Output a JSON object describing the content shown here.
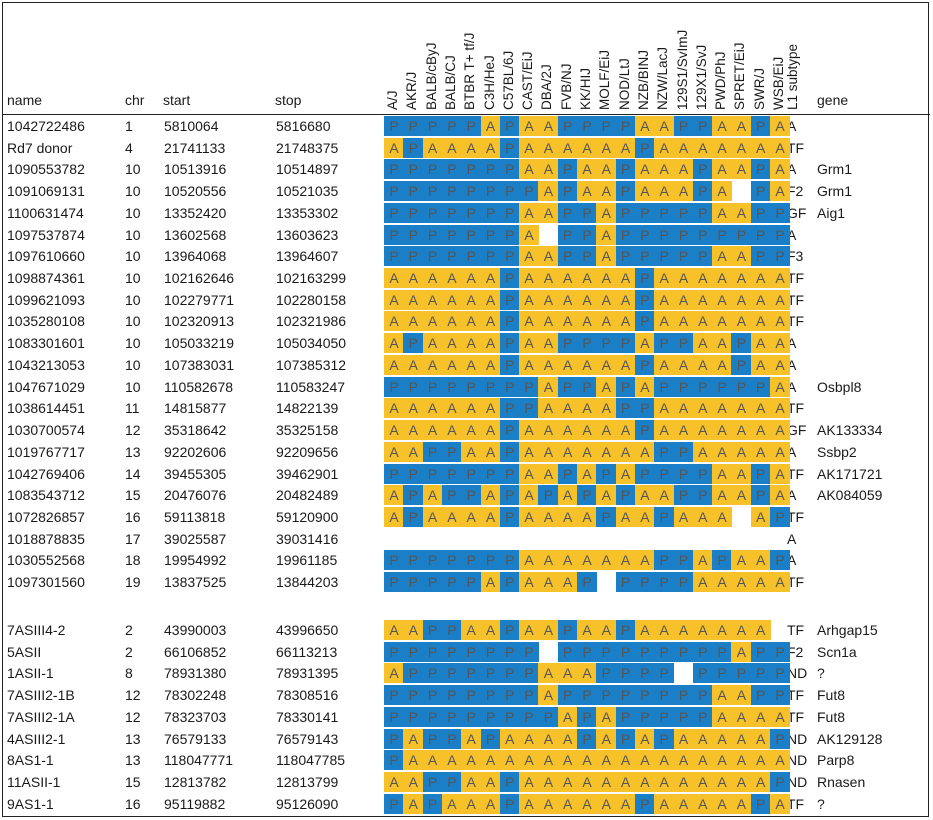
{
  "headers": {
    "name": "name",
    "chr": "chr",
    "start": "start",
    "stop": "stop",
    "l1_subtype": "L1 subtype",
    "gene": "gene"
  },
  "strains": [
    "A/J",
    "AKR/J",
    "BALB/cByJ",
    "BALB/CJ",
    "BTBR T+ tf/J",
    "C3H/HeJ",
    "C57BL/6J",
    "CAST/EiJ",
    "DBA/2J",
    "FVB/NJ",
    "KK/HIJ",
    "MOLF/EiJ",
    "NOD/LtJ",
    "NZB/BINJ",
    "NZW/LacJ",
    "129S1/SvImJ",
    "129X1/SvJ",
    "PWD/PhJ",
    "SPRET/EiJ",
    "SWR/J",
    "WSB/EiJ"
  ],
  "colors": {
    "A": "#f7c12a",
    "P": "#1a7fc7"
  },
  "group1": [
    {
      "name": "1042722486",
      "chr": "1",
      "start": "5810064",
      "stop": "5816680",
      "calls": "PPPPPAPAAPPPPAAPPAAPA",
      "subtype": "A",
      "gene": ""
    },
    {
      "name": "Rd7 donor",
      "chr": "4",
      "start": "21741133",
      "stop": "21748375",
      "calls": "APAAAAPAAAAAAPAAAAAAA",
      "subtype": "TF",
      "gene": ""
    },
    {
      "name": "1090553782",
      "chr": "10",
      "start": "10513916",
      "stop": "10514897",
      "calls": "PPPPPPPAAPAAPAAAPAAPA",
      "subtype": "A",
      "gene": "Grm1"
    },
    {
      "name": "1091069131",
      "chr": "10",
      "start": "10520556",
      "stop": "10521035",
      "calls": "PPPPPPPPAPAAPAAAPA-PA",
      "subtype": "F2",
      "gene": "Grm1"
    },
    {
      "name": "1100631474",
      "chr": "10",
      "start": "13352420",
      "stop": "13353302",
      "calls": "PPPPPPPAAPPAPPPPPAAPP",
      "subtype": "GF",
      "gene": "Aig1"
    },
    {
      "name": "1097537874",
      "chr": "10",
      "start": "13602568",
      "stop": "13603623",
      "calls": "PPPPPPPA-PPAPPPPPPPPP",
      "subtype": "A",
      "gene": ""
    },
    {
      "name": "1097610660",
      "chr": "10",
      "start": "13964068",
      "stop": "13964607",
      "calls": "PPPPPPPAAPPAPPPPPAAPP",
      "subtype": "F3",
      "gene": ""
    },
    {
      "name": "1098874361",
      "chr": "10",
      "start": "102162646",
      "stop": "102163299",
      "calls": "AAAAAAPAAAAAAPAAAAAAA",
      "subtype": "TF",
      "gene": ""
    },
    {
      "name": "1099621093",
      "chr": "10",
      "start": "102279771",
      "stop": "102280158",
      "calls": "AAAAAAPAAAAAAPAAAAAAA",
      "subtype": "TF",
      "gene": ""
    },
    {
      "name": "1035280108",
      "chr": "10",
      "start": "102320913",
      "stop": "102321986",
      "calls": "AAAAAAPAAAAAAPAAAAAAA",
      "subtype": "TF",
      "gene": ""
    },
    {
      "name": "1083301601",
      "chr": "10",
      "start": "105033219",
      "stop": "105034050",
      "calls": "APAAAAPAAPPPPAPPAAPAA",
      "subtype": "A",
      "gene": ""
    },
    {
      "name": "1043213053",
      "chr": "10",
      "start": "107383031",
      "stop": "107385312",
      "calls": "AAAAAAPAAAAAAPAAAAPAA",
      "subtype": "A",
      "gene": ""
    },
    {
      "name": "1047671029",
      "chr": "10",
      "start": "110582678",
      "stop": "110583247",
      "calls": "PPPPPPPPAPPAPAPPPPPPA",
      "subtype": "A",
      "gene": "Osbpl8"
    },
    {
      "name": "1038614451",
      "chr": "11",
      "start": "14815877",
      "stop": "14822139",
      "calls": "AAAAAAPPAAAAPPAAAAAAA",
      "subtype": "TF",
      "gene": ""
    },
    {
      "name": "1030700574",
      "chr": "12",
      "start": "35318642",
      "stop": "35325158",
      "calls": "AAAAAAPAAAAAAPAAAAAAA",
      "subtype": "GF",
      "gene": "AK133334"
    },
    {
      "name": "1019767717",
      "chr": "13",
      "start": "92202606",
      "stop": "92209656",
      "calls": "AAPPAAPAAAAAAAPPAAAAA",
      "subtype": "A",
      "gene": "Ssbp2"
    },
    {
      "name": "1042769406",
      "chr": "14",
      "start": "39455305",
      "stop": "39462901",
      "calls": "PPPPPPPAAPAPAPPPPAAPA",
      "subtype": "TF",
      "gene": "AK171721"
    },
    {
      "name": "1083543712",
      "chr": "15",
      "start": "20476076",
      "stop": "20482489",
      "calls": "APAPPAPAPAPAPAAPPAAPA",
      "subtype": "A",
      "gene": "AK084059"
    },
    {
      "name": "1072826857",
      "chr": "16",
      "start": "59113818",
      "stop": "59120900",
      "calls": "APAAAAPAAAAPAAPAAA-AP",
      "subtype": "TF",
      "gene": ""
    },
    {
      "name": "1018878835",
      "chr": "17",
      "start": "39025587",
      "stop": "39031416",
      "calls": "---------------------",
      "subtype": "A",
      "gene": ""
    },
    {
      "name": "1030552568",
      "chr": "18",
      "start": "19954992",
      "stop": "19961185",
      "calls": "PPPPPPPAAAAAAAPPAPAAP",
      "subtype": "A",
      "gene": ""
    },
    {
      "name": "1097301560",
      "chr": "19",
      "start": "13837525",
      "stop": "13844203",
      "calls": "PPPPPAPAAAP-PPPPAAAAA",
      "subtype": "TF",
      "gene": ""
    }
  ],
  "group2": [
    {
      "name": "7ASIII4-2",
      "chr": "2",
      "start": "43990003",
      "stop": "43996650",
      "calls": "AAPPAAPAAPAAPAAAAAAA-",
      "subtype": "TF",
      "gene": "Arhgap15"
    },
    {
      "name": "5ASII",
      "chr": "2",
      "start": "66106852",
      "stop": "66113213",
      "calls": "PPPPPPPP-PPPPPPPPPAPP",
      "subtype": "F2",
      "gene": "Scn1a"
    },
    {
      "name": "1ASII-1",
      "chr": "8",
      "start": "78931380",
      "stop": "78931395",
      "calls": "APPPPPPPAAAPPPP-PPPPP",
      "subtype": "ND",
      "gene": "?"
    },
    {
      "name": "7ASIII2-1B",
      "chr": "12",
      "start": "78302248",
      "stop": "78308516",
      "calls": "PPPPPPPPAPPPPPPPPAAPP",
      "subtype": "TF",
      "gene": "Fut8"
    },
    {
      "name": "7ASIII2-1A",
      "chr": "12",
      "start": "78323703",
      "stop": "78330141",
      "calls": "PPPPPPPPPAPAPPPPPAAAA",
      "subtype": "TF",
      "gene": "Fut8"
    },
    {
      "name": "4ASIII2-1",
      "chr": "13",
      "start": "76579133",
      "stop": "76579143",
      "calls": "PAPPAPAAAAPAPAPAAAAAP",
      "subtype": "ND",
      "gene": "AK129128"
    },
    {
      "name": "8AS1-1",
      "chr": "13",
      "start": "118047771",
      "stop": "118047785",
      "calls": "PAAAAAAAAAAAAAAAAAAAA",
      "subtype": "ND",
      "gene": "Parp8"
    },
    {
      "name": "11ASII-1",
      "chr": "15",
      "start": "12813782",
      "stop": "12813799",
      "calls": "AAPPAAPAAAAAAAAAAAAAP",
      "subtype": "ND",
      "gene": "Rnasen"
    },
    {
      "name": "9AS1-1",
      "chr": "16",
      "start": "95119882",
      "stop": "95126090",
      "calls": "PAPAAAPAAAAAAPAAAAAPA",
      "subtype": "TF",
      "gene": "?"
    }
  ]
}
